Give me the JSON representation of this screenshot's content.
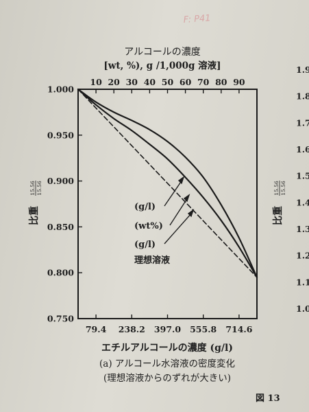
{
  "margin_note": "F: P41",
  "chart_data": {
    "type": "line",
    "title": "アルコールの濃度",
    "title_units": "[wt, %), g /1,000g 溶液]",
    "xlabel": "エチルアルコールの濃度 (g/l)",
    "ylabel": "比重",
    "ylabel_super": "15.56",
    "ylabel_sub": "15.56",
    "ylim": [
      0.75,
      1.0
    ],
    "bottom_axis": {
      "range": [
        0,
        794
      ],
      "ticks": [
        79.4,
        238.2,
        397.0,
        555.8,
        714.6
      ],
      "tick_labels": [
        "79.4",
        "238.2",
        "397.0",
        "555.8",
        "714.6"
      ]
    },
    "top_axis": {
      "range": [
        0,
        100
      ],
      "ticks": [
        10,
        20,
        30,
        40,
        50,
        60,
        70,
        80,
        90
      ],
      "tick_labels": [
        "10",
        "20",
        "30",
        "40",
        "50",
        "60",
        "70",
        "80",
        "90"
      ]
    },
    "y_ticks": [
      0.75,
      0.8,
      0.85,
      0.9,
      0.95,
      1.0
    ],
    "y_tick_labels": [
      "0.750",
      "0.800",
      "0.850",
      "0.900",
      "0.950",
      "1.000"
    ],
    "grid": false,
    "series": [
      {
        "name": "(g/l)",
        "style": "solid",
        "x_axis": "top",
        "x": [
          0,
          10,
          20,
          30,
          40,
          50,
          60,
          70,
          80,
          90,
          100
        ],
        "y": [
          1.0,
          0.986,
          0.975,
          0.966,
          0.956,
          0.943,
          0.926,
          0.904,
          0.874,
          0.838,
          0.795
        ]
      },
      {
        "name": "(wt%)",
        "style": "solid",
        "x_axis": "top",
        "x": [
          0,
          10,
          20,
          30,
          40,
          50,
          60,
          70,
          80,
          90,
          100
        ],
        "y": [
          1.0,
          0.983,
          0.968,
          0.955,
          0.94,
          0.924,
          0.904,
          0.882,
          0.857,
          0.828,
          0.795
        ]
      },
      {
        "name": "理想溶液",
        "style": "dashed",
        "x_axis": "top",
        "x": [
          0,
          100
        ],
        "y": [
          1.0,
          0.795
        ]
      }
    ],
    "annotations": [
      "(g/l)",
      "(wt%)",
      "(g/l)",
      "理想溶液"
    ]
  },
  "caption": {
    "line1": "(a) アルコール水溶液の密度変化",
    "line2": "(理想溶液からのずれが大きい)"
  },
  "figure_label": "図 13",
  "right_margin": {
    "ylabel": "比重",
    "ylabel_super": "15.56",
    "ylabel_sub": "15.56",
    "tick_labels": [
      "1.9",
      "1.8",
      "1.7",
      "1.6",
      "1.5",
      "1.4",
      "1.3",
      "1.2",
      "1.1",
      "1.0"
    ]
  }
}
